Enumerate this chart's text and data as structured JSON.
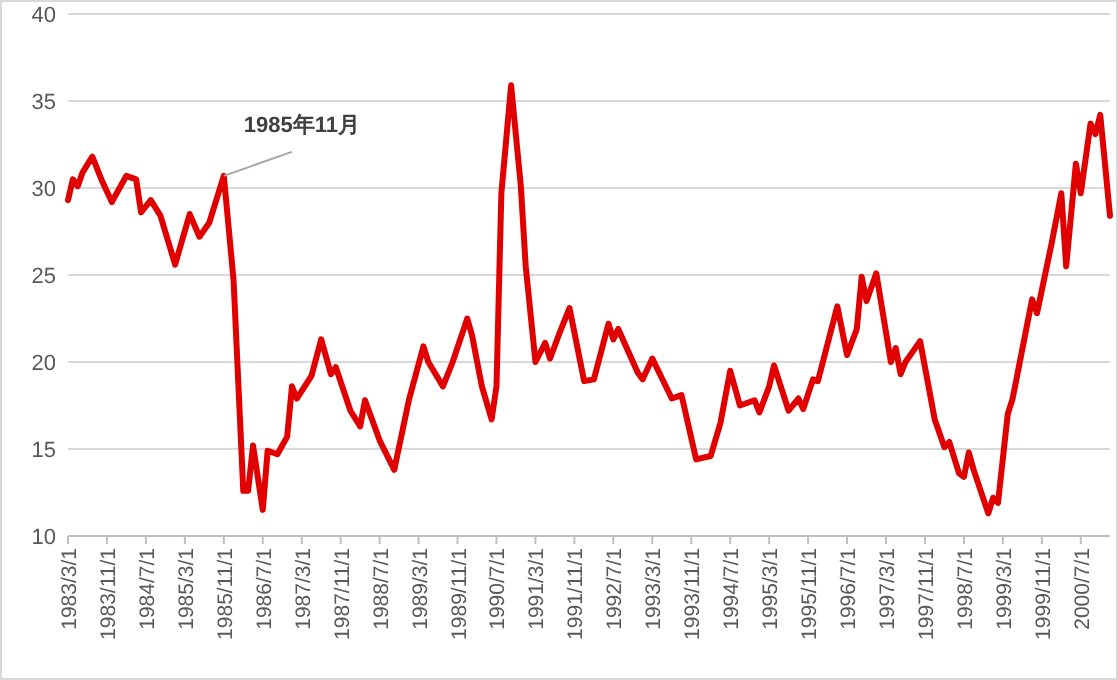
{
  "chart_data": {
    "type": "line",
    "x": [
      "1983-03",
      "1983-04",
      "1983-05",
      "1983-06",
      "1983-08",
      "1983-10",
      "1983-12",
      "1984-03",
      "1984-05",
      "1984-06",
      "1984-08",
      "1984-10",
      "1985-01",
      "1985-04",
      "1985-06",
      "1985-08",
      "1985-11",
      "1986-01",
      "1986-03",
      "1986-04",
      "1986-05",
      "1986-07",
      "1986-08",
      "1986-10",
      "1986-12",
      "1987-01",
      "1987-02",
      "1987-05",
      "1987-07",
      "1987-09",
      "1987-10",
      "1988-01",
      "1988-03",
      "1988-04",
      "1988-07",
      "1988-10",
      "1989-01",
      "1989-04",
      "1989-05",
      "1989-08",
      "1989-10",
      "1990-01",
      "1990-02",
      "1990-04",
      "1990-06",
      "1990-07",
      "1990-08",
      "1990-10",
      "1990-12",
      "1991-01",
      "1991-03",
      "1991-05",
      "1991-06",
      "1991-08",
      "1991-10",
      "1992-01",
      "1992-03",
      "1992-06",
      "1992-07",
      "1992-08",
      "1992-12",
      "1993-01",
      "1993-03",
      "1993-07",
      "1993-09",
      "1993-12",
      "1994-03",
      "1994-05",
      "1994-07",
      "1994-09",
      "1994-12",
      "1995-01",
      "1995-03",
      "1995-04",
      "1995-07",
      "1995-09",
      "1995-10",
      "1995-12",
      "1996-01",
      "1996-05",
      "1996-07",
      "1996-09",
      "1996-10",
      "1996-11",
      "1997-01",
      "1997-04",
      "1997-05",
      "1997-06",
      "1997-07",
      "1997-10",
      "1998-01",
      "1998-03",
      "1998-04",
      "1998-06",
      "1998-07",
      "1998-08",
      "1998-09",
      "1998-12",
      "1999-01",
      "1999-02",
      "1999-04",
      "1999-05",
      "1999-09",
      "1999-10",
      "2000-01",
      "2000-03",
      "2000-04",
      "2000-06",
      "2000-07",
      "2000-09",
      "2000-10",
      "2000-11",
      "2001-01"
    ],
    "series": [
      {
        "color": "#e00000",
        "values": [
          29.3,
          30.5,
          30.1,
          30.9,
          31.8,
          30.4,
          29.2,
          30.7,
          30.5,
          28.6,
          29.3,
          28.4,
          25.6,
          28.5,
          27.2,
          28.0,
          30.7,
          24.7,
          12.6,
          12.6,
          15.2,
          11.5,
          14.9,
          14.7,
          15.7,
          18.6,
          17.9,
          19.2,
          21.3,
          19.3,
          19.7,
          17.2,
          16.3,
          17.8,
          15.5,
          13.8,
          17.8,
          20.9,
          20.0,
          18.6,
          20.0,
          22.5,
          21.5,
          18.6,
          16.7,
          18.6,
          29.7,
          35.9,
          30.1,
          25.5,
          20.0,
          21.1,
          20.2,
          21.7,
          23.1,
          18.9,
          19.0,
          22.2,
          21.3,
          21.9,
          19.4,
          19.0,
          20.2,
          17.9,
          18.1,
          14.4,
          14.6,
          16.5,
          19.5,
          17.5,
          17.8,
          17.1,
          18.6,
          19.8,
          17.2,
          17.9,
          17.3,
          19.0,
          18.9,
          23.2,
          20.4,
          21.9,
          24.9,
          23.5,
          25.1,
          20.0,
          20.8,
          19.3,
          20.0,
          21.2,
          16.7,
          15.1,
          15.4,
          13.6,
          13.4,
          14.8,
          13.8,
          11.3,
          12.2,
          11.9,
          17.0,
          17.9,
          23.6,
          22.8,
          26.8,
          29.7,
          25.5,
          31.4,
          29.7,
          33.7,
          33.1,
          34.2,
          28.4
        ]
      }
    ],
    "xlim": [
      "1983-03",
      "2001-01"
    ],
    "xticks": [
      {
        "value": "1983-03",
        "label": "1983/3/1"
      },
      {
        "value": "1983-11",
        "label": "1983/11/1"
      },
      {
        "value": "1984-07",
        "label": "1984/7/1"
      },
      {
        "value": "1985-03",
        "label": "1985/3/1"
      },
      {
        "value": "1985-11",
        "label": "1985/11/1"
      },
      {
        "value": "1986-07",
        "label": "1986/7/1"
      },
      {
        "value": "1987-03",
        "label": "1987/3/1"
      },
      {
        "value": "1987-11",
        "label": "1987/11/1"
      },
      {
        "value": "1988-07",
        "label": "1988/7/1"
      },
      {
        "value": "1989-03",
        "label": "1989/3/1"
      },
      {
        "value": "1989-11",
        "label": "1989/11/1"
      },
      {
        "value": "1990-07",
        "label": "1990/7/1"
      },
      {
        "value": "1991-03",
        "label": "1991/3/1"
      },
      {
        "value": "1991-11",
        "label": "1991/11/1"
      },
      {
        "value": "1992-07",
        "label": "1992/7/1"
      },
      {
        "value": "1993-03",
        "label": "1993/3/1"
      },
      {
        "value": "1993-11",
        "label": "1993/11/1"
      },
      {
        "value": "1994-07",
        "label": "1994/7/1"
      },
      {
        "value": "1995-03",
        "label": "1995/3/1"
      },
      {
        "value": "1995-11",
        "label": "1995/11/1"
      },
      {
        "value": "1996-07",
        "label": "1996/7/1"
      },
      {
        "value": "1997-03",
        "label": "1997/3/1"
      },
      {
        "value": "1997-11",
        "label": "1997/11/1"
      },
      {
        "value": "1998-07",
        "label": "1998/7/1"
      },
      {
        "value": "1999-03",
        "label": "1999/3/1"
      },
      {
        "value": "1999-11",
        "label": "1999/11/1"
      },
      {
        "value": "2000-07",
        "label": "2000/7/1"
      }
    ],
    "ylim": [
      10,
      40
    ],
    "yticks": [
      10,
      15,
      20,
      25,
      30,
      35,
      40
    ],
    "grid": "y",
    "marker": "none",
    "line_style": "solid",
    "annotations": [
      {
        "text": "1985年11月",
        "x": "1985-11",
        "y": 30.7
      }
    ]
  }
}
